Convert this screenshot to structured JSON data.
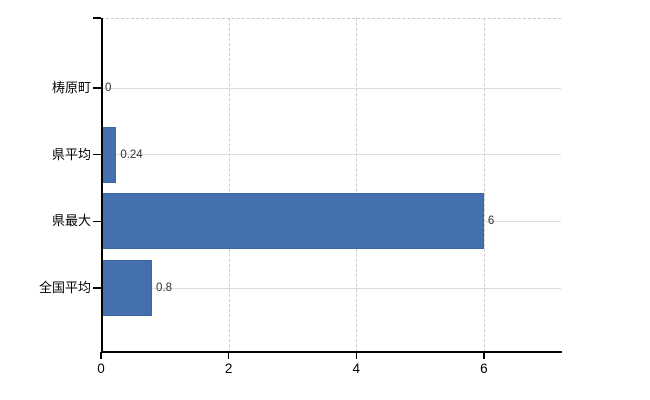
{
  "chart_data": {
    "type": "bar",
    "orientation": "horizontal",
    "title": "",
    "xlabel": "",
    "ylabel": "",
    "categories": [
      "梼原町",
      "県平均",
      "県最大",
      "全国平均"
    ],
    "values": [
      0,
      0.24,
      6,
      0.8
    ],
    "value_labels": [
      "0",
      "0.24",
      "6",
      "0.8"
    ],
    "x_tick_labels": [
      "0",
      "2",
      "4",
      "6"
    ],
    "x_tick_values": [
      0,
      2,
      4,
      6
    ],
    "xlim": [
      0,
      7.2
    ],
    "grid": "vertical-dashed and horizontal-category-lines",
    "legend": "none",
    "colors": {
      "bar": "#4470ad",
      "bar_border": "#3a66a3",
      "axis": "#000000",
      "grid_vertical": "#cccccc",
      "grid_horizontal": "#d9ded9",
      "plot_top_border": "#c9c9c9",
      "category_text": "#000000",
      "value_text": "#333333",
      "background": "#ffffff"
    }
  }
}
